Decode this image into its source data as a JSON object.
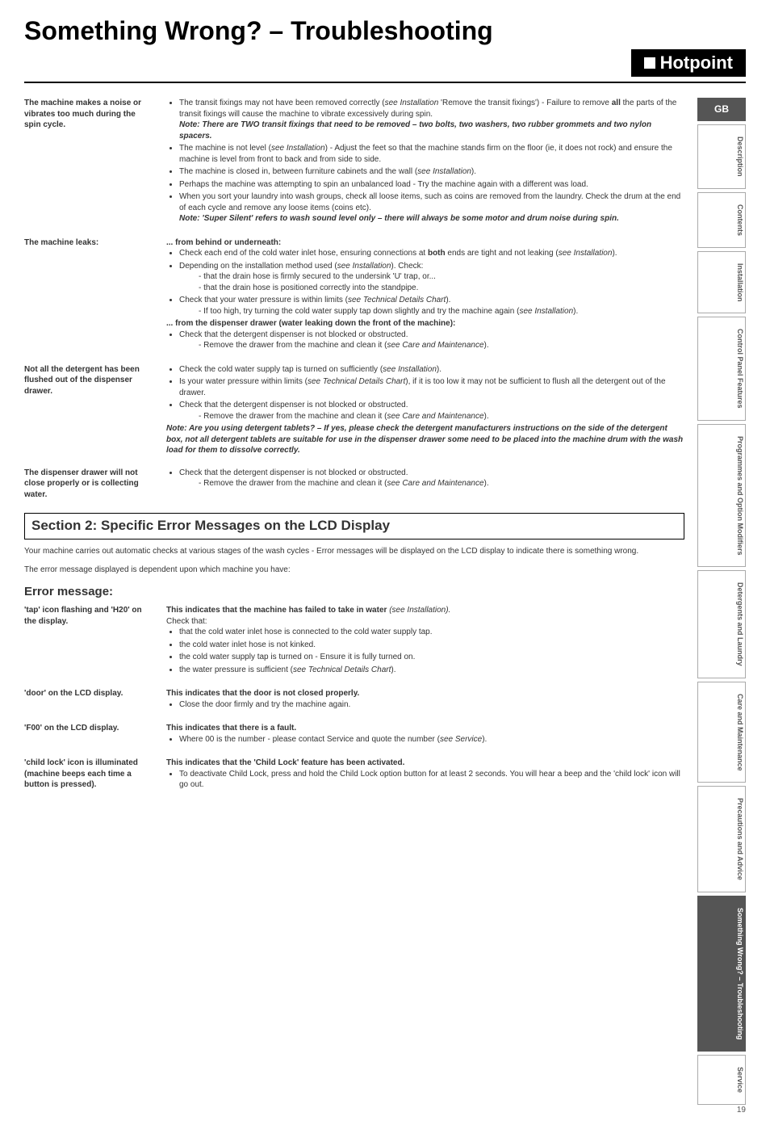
{
  "page": {
    "title": "Something Wrong? – Troubleshooting",
    "brand": "Hotpoint",
    "pageNumber": "19"
  },
  "tabs": {
    "gb": "GB",
    "description": "Description",
    "contents": "Contents",
    "installation": "Installation",
    "controlPanel": "Control Panel Features",
    "programmes": "Programmes and Option Modifiers",
    "detergents": "Detergents and Laundry",
    "care": "Care and Maintenance",
    "precautions": "Precautions and Advice",
    "something": "Something Wrong? – Troubleshooting",
    "service": "Service"
  },
  "rows": {
    "noise": {
      "label": "The machine makes a noise or vibrates too much during the spin cycle.",
      "b1": "The transit fixings may not have been removed correctly (",
      "b1i": "see Installation",
      "b1b": " 'Remove the transit fixings') - Failure to remove ",
      "b1bold": "all",
      "b1c": " the parts of the transit fixings will cause the machine to vibrate excessively during spin.",
      "note1": "Note:  There are TWO transit fixings that need to be removed – two bolts, two washers, two rubber grommets and two nylon spacers.",
      "b2a": "The machine is not level (",
      "b2i": "see Installation",
      "b2b": ") - Adjust the feet so that the machine stands firm on the floor (ie, it does not rock) and ensure the machine is level from front to back and from side to side.",
      "b3a": "The machine is closed in, between furniture cabinets and the wall (",
      "b3i": "see Installation",
      "b3b": ").",
      "b4": "Perhaps the machine was attempting to spin an unbalanced load - Try the machine again with a different was load.",
      "b5": "When you sort your laundry into wash groups, check all loose items, such as coins are removed from the laundry. Check the drum at the end of each cycle and remove any loose items (coins etc).",
      "note2": "Note: 'Super Silent' refers to wash sound level only – there will always be some motor and drum noise during spin."
    },
    "leaks": {
      "label": "The machine leaks:",
      "h1": "... from behind or underneath:",
      "b1a": "Check each end of the cold water inlet hose, ensuring connections at ",
      "b1bold": "both",
      "b1b": " ends are tight and not leaking (",
      "b1i": "see Installation",
      "b1c": ").",
      "b2a": "Depending on the installation method used (",
      "b2i": "see Installation",
      "b2b": "). Check:",
      "s1": "- that the drain hose is firmly secured to the undersink 'U' trap, or...",
      "s2": "- that the drain hose is positioned correctly into the standpipe.",
      "b3a": "Check that your water pressure is within limits (",
      "b3i": "see Technical Details Chart",
      "b3b": ").",
      "s3a": "- If too high, try turning the cold water supply tap down slightly and try the machine again (",
      "s3i": "see Installation",
      "s3b": ").",
      "h2": "... from the dispenser drawer (water leaking down the front of the machine):",
      "b4": "Check that the detergent dispenser is not blocked or obstructed.",
      "s4a": "- Remove the drawer from the machine and clean it (",
      "s4i": "see Care and Maintenance",
      "s4b": ")."
    },
    "detergent": {
      "label": "Not all the detergent has been flushed out of the dispenser drawer.",
      "b1a": "Check the cold water supply tap is turned on sufficiently (",
      "b1i": "see Installation",
      "b1b": ").",
      "b2a": "Is your water pressure within limits (",
      "b2i": "see Technical Details Chart",
      "b2b": "), if it is too low it may not be sufficient to flush all the detergent out of the drawer.",
      "b3": "Check that the detergent dispenser is not blocked or obstructed.",
      "s1a": "- Remove the drawer from the machine and clean it (",
      "s1i": "see Care and Maintenance",
      "s1b": ").",
      "note": "Note: Are you using detergent tablets? – If yes, please check the detergent manufacturers instructions on the side of the detergent box, not all detergent tablets are suitable for use  in the dispenser drawer some need to be placed into the machine drum with the wash load for them to dissolve correctly."
    },
    "dispenser": {
      "label": "The dispenser drawer will not close properly or is collecting water.",
      "b1": "Check that the detergent dispenser is not blocked or obstructed.",
      "s1a": "- Remove the drawer from the machine and clean it (",
      "s1i": "see Care and Maintenance",
      "s1b": ")."
    }
  },
  "section2": {
    "header": "Section 2: Specific Error Messages on the LCD Display",
    "intro1": "Your machine carries out automatic checks at various stages of the wash cycles - Error messages will be displayed on the LCD display to indicate there is something wrong.",
    "intro2": "The error message displayed is dependent upon which machine you have:",
    "errorHeading": "Error message:"
  },
  "errors": {
    "tap": {
      "label": "'tap' icon flashing and 'H20' on the display.",
      "h": "This indicates that the machine has failed to take in water ",
      "hi": "(see Installation).",
      "check": "Check that:",
      "b1": "that the cold water inlet hose is connected to the cold water supply tap.",
      "b2": "the cold water inlet hose is not kinked.",
      "b3": "the cold water supply tap is turned on - Ensure it is fully turned on.",
      "b4a": "the water pressure is sufficient (",
      "b4i": "see Technical Details Chart",
      "b4b": ")."
    },
    "door": {
      "label": "'door' on the LCD display.",
      "h": "This indicates that the door is not closed properly.",
      "b1": "Close the door firmly and try the machine again."
    },
    "f00": {
      "label": "'F00' on the LCD display.",
      "h": "This indicates that there is a fault.",
      "b1a": "Where 00 is the number - please contact Service and quote the number (",
      "b1i": "see Service",
      "b1b": ")."
    },
    "child": {
      "label": "'child lock' icon is illuminated (machine beeps each time a button is pressed).",
      "h": "This indicates that the 'Child Lock' feature has been activated.",
      "b1": "To deactivate Child Lock, press and hold the Child Lock option button for at least 2 seconds. You will hear a beep and the 'child lock' icon will go out."
    }
  }
}
